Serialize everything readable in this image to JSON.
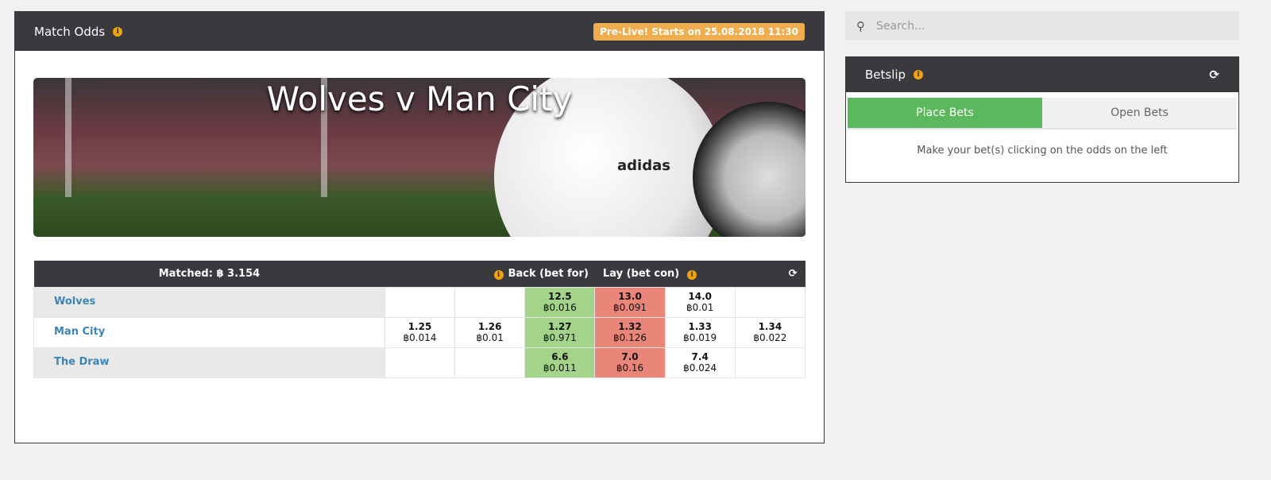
{
  "market": {
    "title": "Match Odds",
    "status_badge": "Pre-Live! Starts on 25.08.2018 11:30"
  },
  "banner": {
    "title": "Wolves v Man City"
  },
  "odds_table": {
    "matched": "Matched: ฿ 3.154",
    "back_label": "Back (bet for)",
    "lay_label": "Lay (bet con)",
    "rows": [
      {
        "name": "Wolves",
        "cells": [
          null,
          null,
          {
            "odd": "12.5",
            "amt": "฿0.016"
          },
          {
            "odd": "13.0",
            "amt": "฿0.091"
          },
          {
            "odd": "14.0",
            "amt": "฿0.01"
          },
          null
        ]
      },
      {
        "name": "Man City",
        "cells": [
          {
            "odd": "1.25",
            "amt": "฿0.014"
          },
          {
            "odd": "1.26",
            "amt": "฿0.01"
          },
          {
            "odd": "1.27",
            "amt": "฿0.971"
          },
          {
            "odd": "1.32",
            "amt": "฿0.126"
          },
          {
            "odd": "1.33",
            "amt": "฿0.019"
          },
          {
            "odd": "1.34",
            "amt": "฿0.022"
          }
        ]
      },
      {
        "name": "The Draw",
        "cells": [
          null,
          null,
          {
            "odd": "6.6",
            "amt": "฿0.011"
          },
          {
            "odd": "7.0",
            "amt": "฿0.16"
          },
          {
            "odd": "7.4",
            "amt": "฿0.024"
          },
          null
        ]
      }
    ]
  },
  "search": {
    "placeholder": "Search..."
  },
  "betslip": {
    "title": "Betslip",
    "tabs": [
      "Place Bets",
      "Open Bets"
    ],
    "active_tab": "Place Bets",
    "message": "Make your bet(s) clicking on the odds on the left"
  },
  "colors": {
    "header": "#3a393e",
    "back": "#a3d48a",
    "lay": "#ea857a",
    "badge": "#f0ad4e",
    "active_tab": "#5cb85c",
    "runner_link": "#3d85b8"
  }
}
